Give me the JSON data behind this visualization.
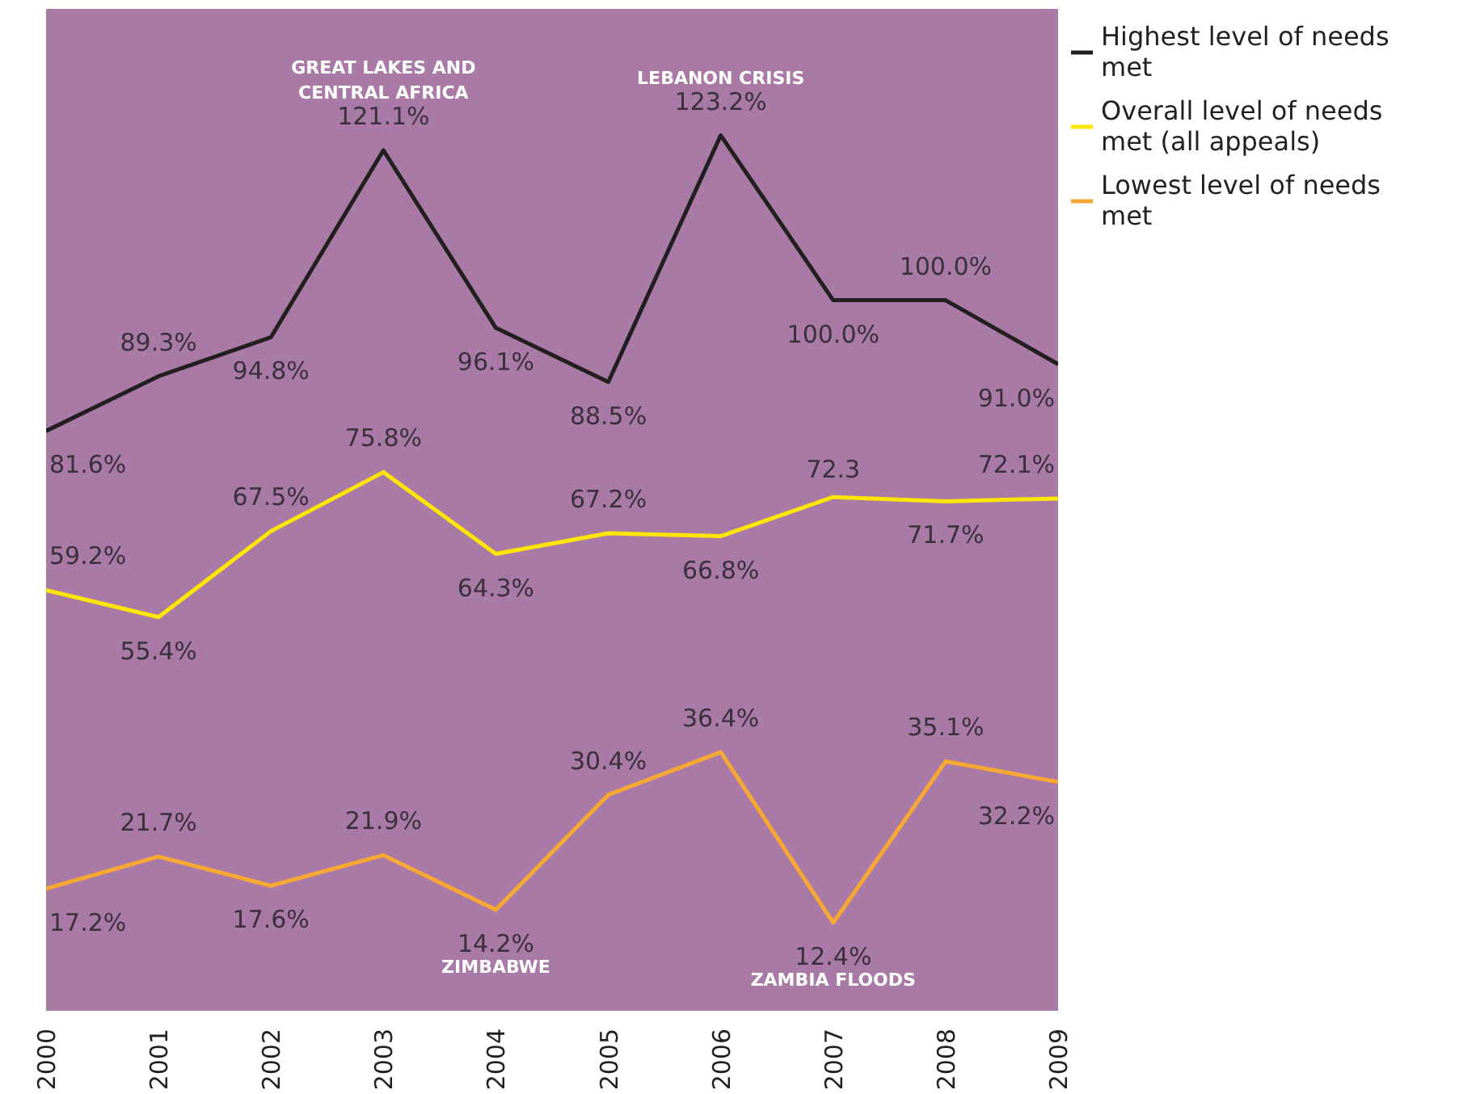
{
  "chart_data": {
    "type": "line",
    "x": [
      2000,
      2001,
      2002,
      2003,
      2004,
      2005,
      2006,
      2007,
      2008,
      2009
    ],
    "xlim": [
      2000,
      2009
    ],
    "xticks": [
      2000,
      2001,
      2002,
      2003,
      2004,
      2005,
      2006,
      2007,
      2008,
      2009
    ],
    "ylim": [
      0,
      141
    ],
    "tick_labels": "x",
    "grid": false,
    "legend": "top right",
    "marker": "none",
    "line_style": "solid",
    "series": [
      {
        "name": "Highest level of needs met",
        "color": "#231f20",
        "values": [
          81.6,
          89.3,
          94.8,
          121.1,
          96.1,
          88.5,
          123.2,
          100.0,
          100.0,
          91.0
        ],
        "value_labels": [
          "81.6%",
          "89.3%",
          "94.8%",
          "121.1%",
          "96.1%",
          "88.5%",
          "123.2%",
          "100.0%",
          "100.0%",
          "91.0%"
        ]
      },
      {
        "name": "Overall level of needs met (all appeals)",
        "color": "#ffe600",
        "values": [
          59.2,
          55.4,
          67.5,
          75.8,
          64.3,
          67.2,
          66.8,
          72.3,
          71.7,
          72.1
        ],
        "value_labels": [
          "59.2%",
          "55.4%",
          "67.5%",
          "75.8%",
          "64.3%",
          "67.2%",
          "66.8%",
          "72.3",
          "71.7%",
          "72.1%"
        ]
      },
      {
        "name": "Lowest level of needs met",
        "color": "#f7a833",
        "values": [
          17.2,
          21.7,
          17.6,
          21.9,
          14.2,
          30.4,
          36.4,
          12.4,
          35.1,
          32.2
        ],
        "value_labels": [
          "17.2%",
          "21.7%",
          "17.6%",
          "21.9%",
          "14.2%",
          "30.4%",
          "36.4%",
          "12.4%",
          "35.1%",
          "32.2%"
        ]
      }
    ],
    "annotations": [
      {
        "text": "GREAT LAKES AND CENTRAL AFRICA",
        "x": 2003,
        "y": 121.1
      },
      {
        "text": "LEBANON CRISIS",
        "x": 2006,
        "y": 123.2
      },
      {
        "text": "ZIMBABWE",
        "x": 2004,
        "y": 14.2
      },
      {
        "text": "ZAMBIA FLOODS",
        "x": 2007,
        "y": 12.4
      }
    ]
  }
}
